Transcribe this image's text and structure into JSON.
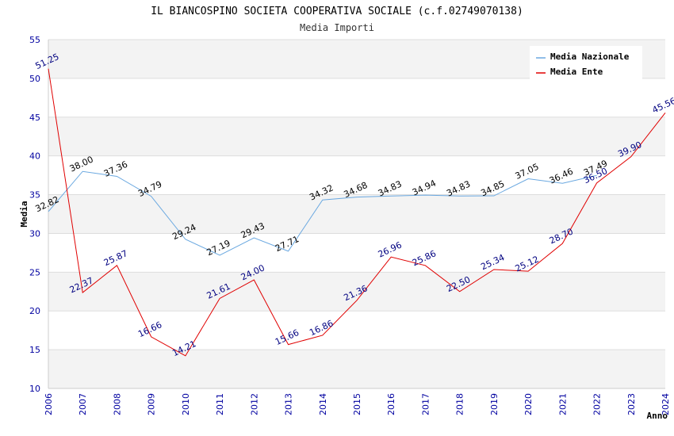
{
  "chart_data": {
    "type": "line",
    "title": "IL BIANCOSPINO SOCIETA COOPERATIVA SOCIALE (c.f.02749070138)",
    "subtitle": "Media Importi",
    "xlabel": "Anno",
    "ylabel": "Media",
    "ylim": [
      10,
      55
    ],
    "yticks": [
      10,
      15,
      20,
      25,
      30,
      35,
      40,
      45,
      50,
      55
    ],
    "x": [
      "2006",
      "2007",
      "2008",
      "2009",
      "2010",
      "2011",
      "2012",
      "2013",
      "2014",
      "2015",
      "2016",
      "2017",
      "2018",
      "2019",
      "2020",
      "2021",
      "2022",
      "2023",
      "2024"
    ],
    "grid": true,
    "legend_position": "top-right",
    "series": [
      {
        "name": "Media Nazionale",
        "color": "#6aa8e0",
        "label_color": "#000000",
        "values": [
          32.82,
          38.0,
          37.36,
          34.79,
          29.24,
          27.19,
          29.43,
          27.71,
          34.32,
          34.68,
          34.83,
          34.94,
          34.83,
          34.85,
          37.05,
          36.46,
          37.49,
          null,
          null
        ],
        "labels": [
          "32.82",
          "38.00",
          "37.36",
          "34.79",
          "29.24",
          "27.19",
          "29.43",
          "27.71",
          "34.32",
          "34.68",
          "34.83",
          "34.94",
          "34.83",
          "34.85",
          "37.05",
          "36.46",
          "37.49",
          "",
          ""
        ]
      },
      {
        "name": "Media Ente",
        "color": "#e00000",
        "label_color": "#000080",
        "values": [
          51.25,
          22.37,
          25.87,
          16.66,
          14.21,
          21.61,
          24.0,
          15.66,
          16.86,
          21.36,
          26.96,
          25.86,
          22.5,
          25.34,
          25.12,
          28.7,
          36.5,
          39.9,
          45.56
        ],
        "labels": [
          "51.25",
          "22.37",
          "25.87",
          "16.66",
          "14.21",
          "21.61",
          "24.00",
          "15.66",
          "16.86",
          "21.36",
          "26.96",
          "25.86",
          "22.50",
          "25.34",
          "25.12",
          "28.70",
          "36.50",
          "39.90",
          "45.56"
        ]
      }
    ]
  }
}
